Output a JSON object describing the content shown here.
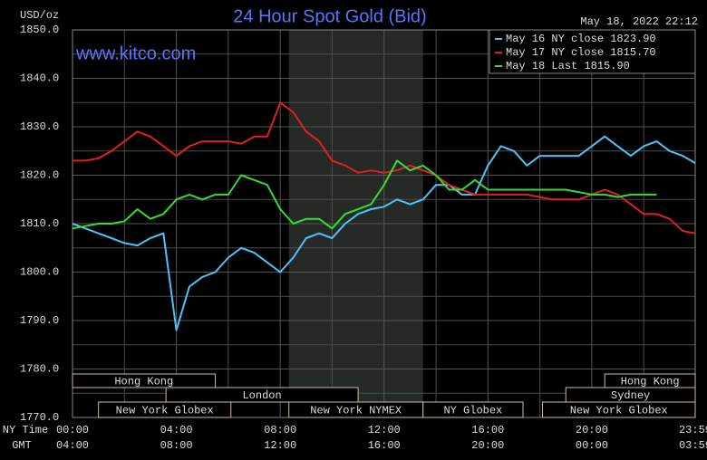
{
  "chart_data": {
    "type": "line",
    "title": "24 Hour Spot Gold (Bid)",
    "y_label": "USD/oz",
    "timestamp": "May 18, 2022 22:12",
    "watermark": "www.kitco.com",
    "x_row_label": "NY Time",
    "gmt_row_label": "GMT",
    "xlim": [
      0,
      23.9833
    ],
    "ylim": [
      1770,
      1850
    ],
    "xticks": [
      {
        "value": 0,
        "label": "00:00"
      },
      {
        "value": 4,
        "label": "04:00"
      },
      {
        "value": 8,
        "label": "08:00"
      },
      {
        "value": 12,
        "label": "12:00"
      },
      {
        "value": 16,
        "label": "16:00"
      },
      {
        "value": 20,
        "label": "20:00"
      },
      {
        "value": 23.9833,
        "label": "23:59"
      }
    ],
    "gmt_labels": [
      "04:00",
      "08:00",
      "12:00",
      "16:00",
      "20:00",
      "00:00",
      "03:59"
    ],
    "xgrid_minor": [
      2,
      6,
      10,
      14,
      18,
      22
    ],
    "yticks": [
      {
        "value": 1770,
        "label": "1770.0"
      },
      {
        "value": 1780,
        "label": "1780.0"
      },
      {
        "value": 1790,
        "label": "1790.0"
      },
      {
        "value": 1800,
        "label": "1800.0"
      },
      {
        "value": 1810,
        "label": "1810.0"
      },
      {
        "value": 1820,
        "label": "1820.0"
      },
      {
        "value": 1830,
        "label": "1830.0"
      },
      {
        "value": 1840,
        "label": "1840.0"
      },
      {
        "value": 1850,
        "label": "1850.0"
      }
    ],
    "ygrid_minor": [
      1775,
      1785,
      1795,
      1805,
      1815,
      1825,
      1835,
      1845
    ],
    "grid": true,
    "shaded_span": [
      8.333,
      13.5
    ],
    "x": [
      0,
      0.5,
      1,
      1.5,
      2,
      2.5,
      3,
      3.5,
      4,
      4.5,
      5,
      5.5,
      6,
      6.5,
      7,
      7.5,
      8,
      8.5,
      9,
      9.5,
      10,
      10.5,
      11,
      11.5,
      12,
      12.5,
      13,
      13.5,
      14,
      14.5,
      15,
      15.5,
      16,
      16.5,
      17,
      17.5,
      18,
      18.5,
      19,
      19.5,
      20,
      20.5,
      21,
      21.5,
      22,
      22.5,
      23,
      23.5,
      23.9833
    ],
    "series": [
      {
        "name": "May 16 NY close 1823.90",
        "color": "#4fc3f7",
        "values": [
          1810,
          1809,
          1808,
          1807,
          1806,
          1805.5,
          1807,
          1808,
          1788,
          1797,
          1799,
          1800,
          1803,
          1805,
          1804,
          1802,
          1800,
          1803,
          1807,
          1808,
          1807,
          1810,
          1812,
          1813,
          1813.5,
          1815,
          1814,
          1815,
          1818,
          1818,
          1816,
          1816,
          1822,
          1826,
          1825,
          1822,
          1824,
          1824,
          1824,
          1824,
          1826,
          1828,
          1826,
          1824,
          1826,
          1827,
          1825,
          1824,
          1822.5
        ]
      },
      {
        "name": "May 17 NY close 1815.70",
        "color": "#e02020",
        "values": [
          1823,
          1823,
          1823.5,
          1825,
          1827,
          1829,
          1828,
          1826,
          1824,
          1826,
          1827,
          1827,
          1827,
          1826.5,
          1828,
          1828,
          1835,
          1833,
          1829,
          1827,
          1823,
          1822,
          1820.5,
          1821,
          1820.5,
          1821,
          1822,
          1821,
          1820,
          1818,
          1817,
          1816,
          1816,
          1816,
          1816,
          1816,
          1815.5,
          1815,
          1815,
          1815,
          1816,
          1817,
          1816,
          1814,
          1812,
          1812,
          1811,
          1808.5,
          1808
        ]
      },
      {
        "name": "May 18 Last 1815.90",
        "color": "#33dd33",
        "values": [
          1809,
          1809.5,
          1810,
          1810,
          1810.5,
          1813,
          1811,
          1812,
          1815,
          1816,
          1815,
          1816,
          1816,
          1820,
          1819,
          1818,
          1813,
          1810,
          1811,
          1811,
          1809,
          1812,
          1813,
          1814,
          1818,
          1823,
          1821,
          1822,
          1820,
          1817,
          1817,
          1819,
          1817,
          1817,
          1817,
          1817,
          1817,
          1817,
          1817,
          1816.5,
          1816,
          1816,
          1815.5,
          1816,
          1816,
          1816,
          null,
          null,
          null
        ]
      }
    ],
    "session_rows": [
      [
        {
          "label": "Hong Kong",
          "start": 0,
          "end": 5.5
        },
        {
          "label": "Hong Kong",
          "start": 20.5,
          "end": 23.9833
        }
      ],
      [
        {
          "label": "London",
          "start": 3.6,
          "end": 11
        },
        {
          "label": "Sydney",
          "start": 19,
          "end": 23.9833
        }
      ],
      [
        {
          "label": "New York Globex",
          "start": 1,
          "end": 6.1
        },
        {
          "label": "New York NYMEX",
          "start": 8.333,
          "end": 13.5
        },
        {
          "label": "NY Globex",
          "start": 13.5,
          "end": 17.35
        },
        {
          "label": "New York Globex",
          "start": 18.1,
          "end": 23.9833
        }
      ]
    ]
  }
}
